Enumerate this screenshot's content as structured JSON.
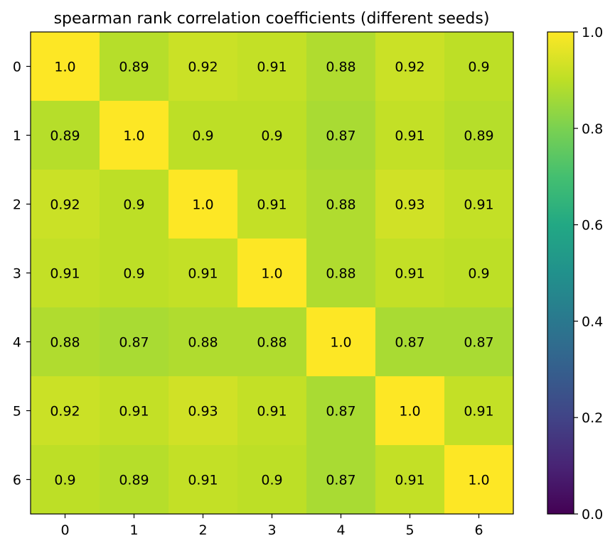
{
  "chart_data": {
    "type": "heatmap",
    "title": "spearman rank correlation coefficients (different seeds)",
    "xlabel": "",
    "ylabel": "",
    "x_categories": [
      "0",
      "1",
      "2",
      "3",
      "4",
      "5",
      "6"
    ],
    "y_categories": [
      "0",
      "1",
      "2",
      "3",
      "4",
      "5",
      "6"
    ],
    "values": [
      [
        1.0,
        0.89,
        0.92,
        0.91,
        0.88,
        0.92,
        0.9
      ],
      [
        0.89,
        1.0,
        0.9,
        0.9,
        0.87,
        0.91,
        0.89
      ],
      [
        0.92,
        0.9,
        1.0,
        0.91,
        0.88,
        0.93,
        0.91
      ],
      [
        0.91,
        0.9,
        0.91,
        1.0,
        0.88,
        0.91,
        0.9
      ],
      [
        0.88,
        0.87,
        0.88,
        0.88,
        1.0,
        0.87,
        0.87
      ],
      [
        0.92,
        0.91,
        0.93,
        0.91,
        0.87,
        1.0,
        0.91
      ],
      [
        0.9,
        0.89,
        0.91,
        0.9,
        0.87,
        0.91,
        1.0
      ]
    ],
    "cell_labels": [
      [
        "1.0",
        "0.89",
        "0.92",
        "0.91",
        "0.88",
        "0.92",
        "0.9"
      ],
      [
        "0.89",
        "1.0",
        "0.9",
        "0.9",
        "0.87",
        "0.91",
        "0.89"
      ],
      [
        "0.92",
        "0.9",
        "1.0",
        "0.91",
        "0.88",
        "0.93",
        "0.91"
      ],
      [
        "0.91",
        "0.9",
        "0.91",
        "1.0",
        "0.88",
        "0.91",
        "0.9"
      ],
      [
        "0.88",
        "0.87",
        "0.88",
        "0.88",
        "1.0",
        "0.87",
        "0.87"
      ],
      [
        "0.92",
        "0.91",
        "0.93",
        "0.91",
        "0.87",
        "1.0",
        "0.91"
      ],
      [
        "0.9",
        "0.89",
        "0.91",
        "0.9",
        "0.87",
        "0.91",
        "1.0"
      ]
    ],
    "colormap": "viridis",
    "colorbar": {
      "range": [
        0.0,
        1.0
      ],
      "ticks": [
        0.0,
        0.2,
        0.4,
        0.6,
        0.8,
        1.0
      ],
      "tick_labels": [
        "0.0",
        "0.2",
        "0.4",
        "0.6",
        "0.8",
        "1.0"
      ]
    },
    "grid": false
  },
  "colors": {
    "axis": "#000000",
    "label_text": "#000000",
    "background": "#ffffff"
  }
}
